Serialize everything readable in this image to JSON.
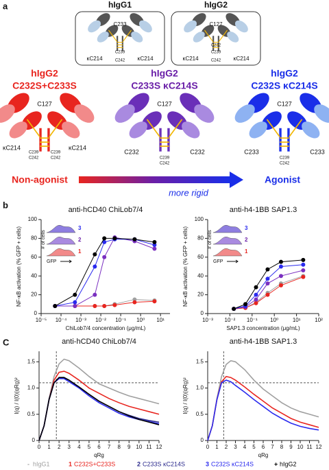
{
  "panel_labels": {
    "a": "a",
    "b": "b",
    "c": "C"
  },
  "panel_a": {
    "reference": [
      {
        "title": "hIgG1",
        "labels": [
          "C233",
          "κC214",
          "κC214",
          "C239",
          "C242"
        ]
      },
      {
        "title": "hIgG2",
        "labels": [
          "C127",
          "κC214",
          "κC214",
          "C232",
          "C239",
          "C242"
        ]
      }
    ],
    "variants": [
      {
        "title": "hIgG2",
        "subtitle": "C232S+C233S",
        "labels": [
          "C127",
          "κC214",
          "κC214",
          "C239",
          "C242",
          "C239",
          "C242"
        ]
      },
      {
        "title": "hIgG2",
        "subtitle": "C233S κC214S",
        "labels": [
          "C127",
          "C232",
          "C232",
          "C239",
          "C242"
        ]
      },
      {
        "title": "hIgG2",
        "subtitle": "C232S κC214S",
        "labels": [
          "C127",
          "C233",
          "C233",
          "C239",
          "C242"
        ]
      }
    ],
    "scale": {
      "left": "Non-agonist",
      "middle": "more rigid",
      "right": "Agonist"
    }
  },
  "chart_data": [
    {
      "type": "line",
      "title": "anti-hCD40 ChiLob7/4",
      "xlabel": "ChiLob7/4 concentration (μg/mL)",
      "ylabel": "NF-κB activation (% GFP + cells)",
      "xscale": "log",
      "xlim": [
        1e-05,
        30
      ],
      "ylim": [
        0,
        100
      ],
      "xticks": [
        {
          "value": 1e-05,
          "label": "10⁻⁵"
        },
        {
          "value": 0.0001,
          "label": "10⁻⁴"
        },
        {
          "value": 0.001,
          "label": "10⁻³"
        },
        {
          "value": 0.01,
          "label": "10⁻²"
        },
        {
          "value": 0.1,
          "label": "10⁻¹"
        },
        {
          "value": 1,
          "label": "10⁰"
        },
        {
          "value": 10,
          "label": "10¹"
        }
      ],
      "yticks": [
        0,
        20,
        40,
        60,
        80,
        100
      ],
      "markers": true,
      "inset": {
        "ylabel": "# of cells",
        "xlabel": "GFP",
        "labels": [
          "3",
          "2",
          "1"
        ]
      },
      "x": [
        5e-05,
        0.0005,
        0.005,
        0.015,
        0.05,
        0.5,
        5
      ],
      "series": [
        {
          "color": "#a0a0a0",
          "values": [
            8,
            8,
            8,
            8,
            10,
            15,
            14
          ]
        },
        {
          "color": "#e8251f",
          "values": [
            8,
            8,
            8,
            8,
            9,
            12,
            13
          ]
        },
        {
          "color": "#7a2fc0",
          "values": [
            8,
            8,
            20,
            60,
            81,
            77,
            69
          ]
        },
        {
          "color": "#2a2aee",
          "values": [
            8,
            12,
            50,
            76,
            79,
            79,
            73
          ]
        },
        {
          "color": "#000000",
          "values": [
            8,
            20,
            63,
            80,
            80,
            79,
            76
          ]
        }
      ]
    },
    {
      "type": "line",
      "title": "anti-h4-1BB SAP1.3",
      "xlabel": "SAP1.3 concentration (μg/mL)",
      "ylabel": "NF-κB activation (% GFP + cells)",
      "xscale": "log",
      "xlim": [
        0.001,
        100
      ],
      "ylim": [
        0,
        100
      ],
      "xticks": [
        {
          "value": 0.001,
          "label": "10⁻³"
        },
        {
          "value": 0.01,
          "label": "10⁻²"
        },
        {
          "value": 0.1,
          "label": "10⁻¹"
        },
        {
          "value": 1,
          "label": "10⁰"
        },
        {
          "value": 10,
          "label": "10¹"
        },
        {
          "value": 100,
          "label": "10²"
        }
      ],
      "yticks": [
        0,
        20,
        40,
        60,
        80,
        100
      ],
      "markers": true,
      "inset": {
        "ylabel": "# of cells",
        "xlabel": "GFP",
        "labels": [
          "3",
          "2",
          "1"
        ]
      },
      "x": [
        0.015,
        0.05,
        0.15,
        0.5,
        2,
        20
      ],
      "series": [
        {
          "color": "#a0a0a0",
          "values": [
            5,
            6,
            12,
            22,
            32,
            40
          ]
        },
        {
          "color": "#e8251f",
          "values": [
            5,
            6,
            11,
            20,
            30,
            39
          ]
        },
        {
          "color": "#7a2fc0",
          "values": [
            5,
            7,
            15,
            32,
            40,
            46
          ]
        },
        {
          "color": "#2a2aee",
          "values": [
            5,
            8,
            20,
            37,
            50,
            52
          ]
        },
        {
          "color": "#000000",
          "values": [
            5,
            10,
            28,
            47,
            55,
            57
          ]
        }
      ]
    },
    {
      "type": "line",
      "title": "anti-hCD40 ChiLob7/4",
      "xlabel": "qRg",
      "ylabel": "I(q) / I(0)(qRg)²",
      "xlim": [
        0,
        12
      ],
      "ylim": [
        0,
        1.7
      ],
      "xticks": [
        0,
        1,
        2,
        3,
        4,
        5,
        6,
        7,
        8,
        9,
        10,
        11,
        12
      ],
      "yticks": [
        0,
        0.5,
        {
          "value": 1,
          "label": "1.0"
        },
        1.5
      ],
      "reference_lines": {
        "x": 1.73,
        "y": 1.1
      },
      "x": [
        0,
        0.5,
        1,
        1.5,
        2,
        2.5,
        3,
        4,
        5,
        6,
        7,
        8,
        9,
        10,
        11,
        12
      ],
      "series": [
        {
          "name": "hIgG1",
          "legend_symbol": "-",
          "color": "#a0a0a0",
          "values": [
            0,
            0.28,
            0.8,
            1.22,
            1.46,
            1.55,
            1.52,
            1.38,
            1.22,
            1.08,
            1.0,
            0.92,
            0.85,
            0.8,
            0.75,
            0.7
          ]
        },
        {
          "name": "C232S+C233S",
          "legend_symbol": "1",
          "color": "#e8251f",
          "values": [
            0,
            0.28,
            0.78,
            1.15,
            1.3,
            1.32,
            1.28,
            1.15,
            1.0,
            0.9,
            0.8,
            0.72,
            0.65,
            0.6,
            0.55,
            0.5
          ]
        },
        {
          "name": "C233S κC214S",
          "legend_symbol": "2",
          "color": "#2b2a8c",
          "values": [
            0,
            0.28,
            0.78,
            1.1,
            1.2,
            1.2,
            1.15,
            1.02,
            0.88,
            0.75,
            0.65,
            0.55,
            0.48,
            0.42,
            0.38,
            0.35
          ]
        },
        {
          "name": "C232S κC214S",
          "legend_symbol": "3",
          "color": "#2a2aee",
          "values": [
            0,
            0.28,
            0.78,
            1.1,
            1.18,
            1.18,
            1.12,
            1.0,
            0.85,
            0.72,
            0.62,
            0.52,
            0.45,
            0.4,
            0.36,
            0.32
          ]
        },
        {
          "name": "hIgG2",
          "legend_symbol": "+",
          "color": "#000000",
          "values": [
            0,
            0.28,
            0.78,
            1.1,
            1.2,
            1.2,
            1.15,
            1.02,
            0.88,
            0.75,
            0.65,
            0.55,
            0.47,
            0.4,
            0.35,
            0.3
          ]
        }
      ]
    },
    {
      "type": "line",
      "title": "anti-h4-1BB SAP1.3",
      "xlabel": "qRg",
      "ylabel": "I(q) / I(0)(qRg)²",
      "xlim": [
        0,
        12
      ],
      "ylim": [
        0,
        1.7
      ],
      "xticks": [
        0,
        1,
        2,
        3,
        4,
        5,
        6,
        7,
        8,
        9,
        10,
        11,
        12
      ],
      "yticks": [
        0,
        0.5,
        {
          "value": 1,
          "label": "1.0"
        },
        1.5
      ],
      "reference_lines": {
        "x": 1.73,
        "y": 1.1
      },
      "x": [
        0,
        0.5,
        1,
        1.5,
        2,
        2.5,
        3,
        4,
        5,
        6,
        7,
        8,
        9,
        10,
        11,
        12
      ],
      "series": [
        {
          "color": "#a0a0a0",
          "values": [
            0,
            0.28,
            0.8,
            1.22,
            1.45,
            1.52,
            1.5,
            1.35,
            1.15,
            0.98,
            0.85,
            0.72,
            0.62,
            0.55,
            0.5,
            0.45
          ]
        },
        {
          "color": "#e8251f",
          "values": [
            0,
            0.28,
            0.78,
            1.12,
            1.22,
            1.2,
            1.15,
            1.02,
            0.88,
            0.75,
            0.62,
            0.52,
            0.42,
            0.35,
            0.3,
            0.25
          ]
        },
        {
          "color": "#2a2aee",
          "values": [
            0,
            0.28,
            0.78,
            1.1,
            1.15,
            1.12,
            1.05,
            0.92,
            0.78,
            0.65,
            0.52,
            0.42,
            0.33,
            0.27,
            0.23,
            0.2
          ]
        }
      ]
    }
  ]
}
